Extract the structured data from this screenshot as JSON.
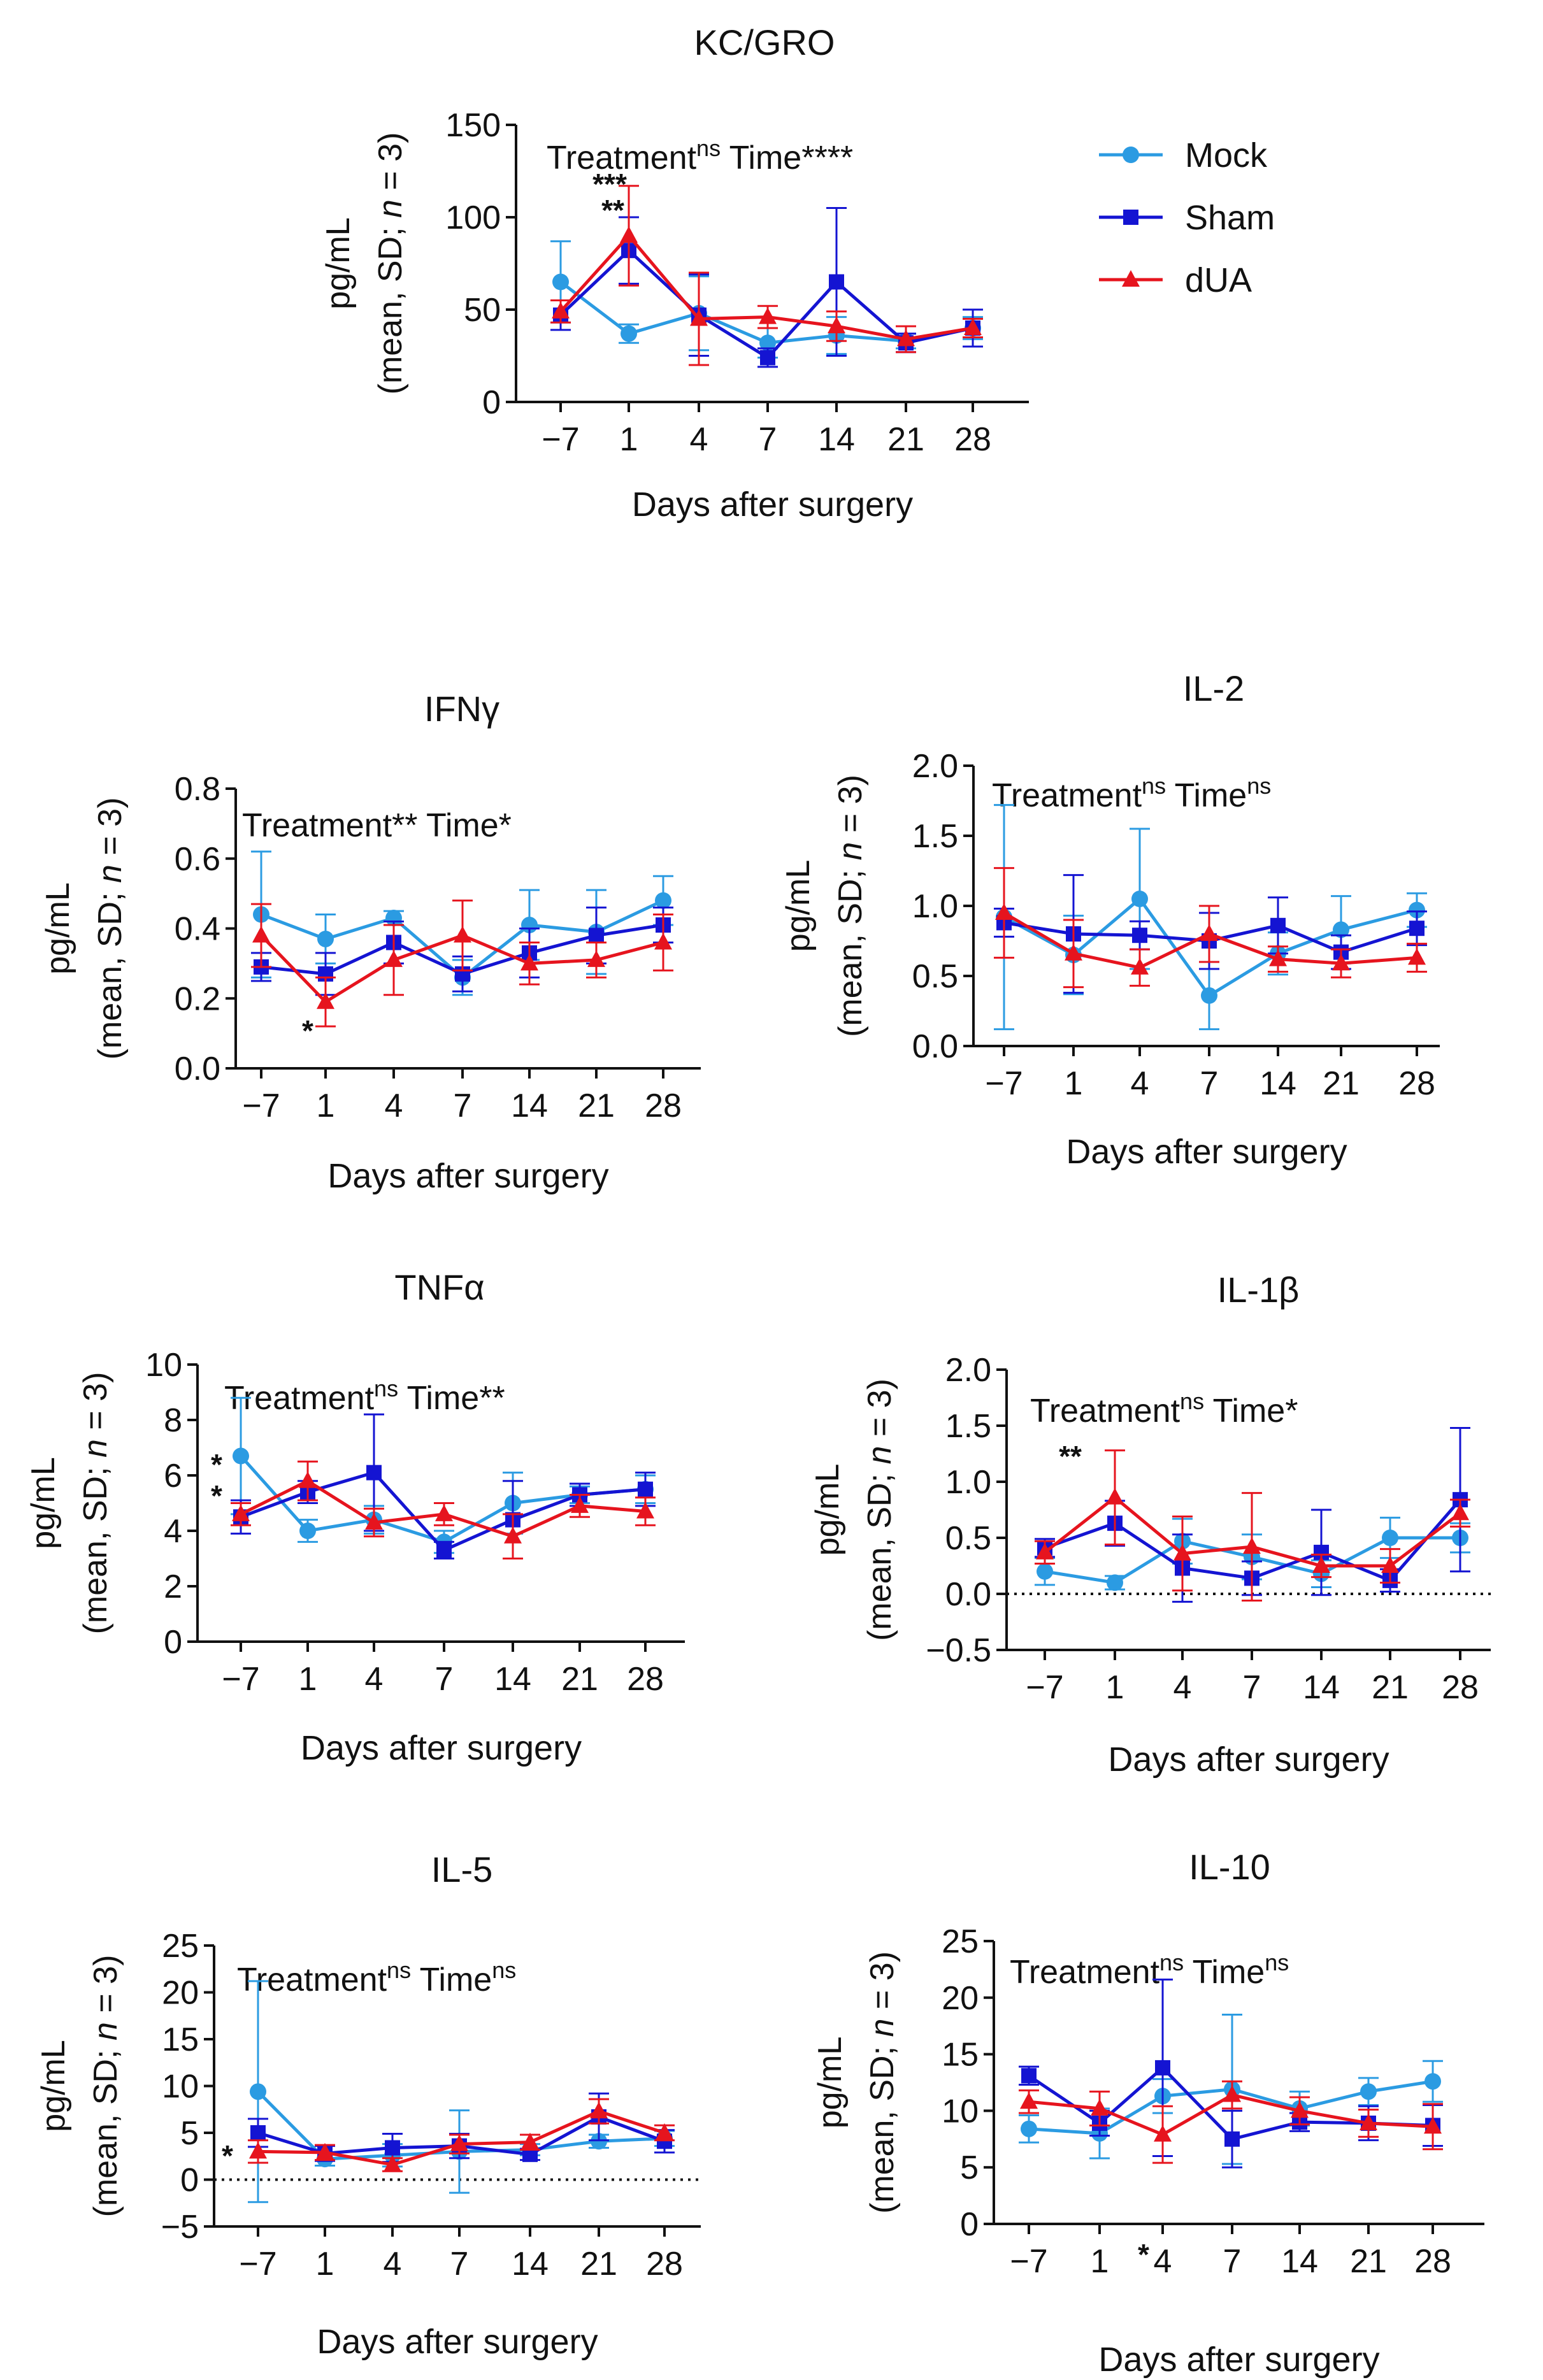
{
  "legend": {
    "items": [
      {
        "label": "Mock",
        "color": "#2b9be2",
        "marker": "circle"
      },
      {
        "label": "Sham",
        "color": "#1414d2",
        "marker": "square"
      },
      {
        "label": "dUA",
        "color": "#e6141e",
        "marker": "triangle"
      }
    ]
  },
  "chart_data": [
    {
      "type": "line",
      "title": "KC/GRO",
      "xlabel": "Days after surgery",
      "ylabel_line1": "pg/mL",
      "ylabel_pre": "(mean, SD; ",
      "ylabel_italic": "n",
      "ylabel_post": " = 3)",
      "categories": [
        "−7",
        "1",
        "4",
        "7",
        "14",
        "21",
        "28"
      ],
      "ylim": [
        0,
        150
      ],
      "yticks": [
        "0",
        "50",
        "100",
        "150"
      ],
      "dotted_zero": false,
      "stats": {
        "treatment": "Treatment",
        "treatment_sup": "ns",
        "time": "Time****",
        "time_sup": ""
      },
      "series": [
        {
          "name": "Mock",
          "values": [
            65,
            37,
            48,
            32,
            36,
            33,
            40
          ],
          "sd": [
            22,
            5,
            20,
            8,
            10,
            4,
            6
          ]
        },
        {
          "name": "Sham",
          "values": [
            47,
            82,
            47,
            24,
            65,
            32,
            40
          ],
          "sd": [
            8,
            18,
            22,
            5,
            40,
            5,
            10
          ]
        },
        {
          "name": "dUA",
          "values": [
            49,
            90,
            45,
            46,
            41,
            34,
            40
          ],
          "sd": [
            6,
            27,
            25,
            6,
            8,
            7,
            5
          ]
        }
      ],
      "annotations": [
        {
          "text": "***",
          "x_index": 1
        },
        {
          "text": "**",
          "x_index": 1
        }
      ]
    },
    {
      "type": "line",
      "title": "IFNγ",
      "xlabel": "Days after surgery",
      "ylabel_line1": "pg/mL",
      "ylabel_pre": "(mean, SD; ",
      "ylabel_italic": "n",
      "ylabel_post": " = 3)",
      "categories": [
        "−7",
        "1",
        "4",
        "7",
        "14",
        "21",
        "28"
      ],
      "ylim": [
        0,
        0.8
      ],
      "yticks": [
        "0.0",
        "0.2",
        "0.4",
        "0.6",
        "0.8"
      ],
      "dotted_zero": false,
      "stats": {
        "treatment": "Treatment** ",
        "treatment_sup": "",
        "time": "Time*",
        "time_sup": ""
      },
      "series": [
        {
          "name": "Mock",
          "values": [
            0.44,
            0.37,
            0.43,
            0.26,
            0.41,
            0.39,
            0.48
          ],
          "sd": [
            0.18,
            0.07,
            0.02,
            0.05,
            0.1,
            0.12,
            0.07
          ]
        },
        {
          "name": "Sham",
          "values": [
            0.29,
            0.27,
            0.36,
            0.27,
            0.33,
            0.38,
            0.41
          ],
          "sd": [
            0.04,
            0.06,
            0.06,
            0.05,
            0.07,
            0.08,
            0.05
          ]
        },
        {
          "name": "dUA",
          "values": [
            0.38,
            0.19,
            0.31,
            0.38,
            0.3,
            0.31,
            0.36
          ],
          "sd": [
            0.09,
            0.07,
            0.1,
            0.1,
            0.06,
            0.05,
            0.08
          ]
        }
      ],
      "annotations": [
        {
          "text": "*",
          "x_index": 1
        }
      ]
    },
    {
      "type": "line",
      "title": "IL-2",
      "xlabel": "Days after surgery",
      "ylabel_line1": "pg/mL",
      "ylabel_pre": "(mean, SD; ",
      "ylabel_italic": "n",
      "ylabel_post": " = 3)",
      "categories": [
        "−7",
        "1",
        "4",
        "7",
        "14",
        "21",
        "28"
      ],
      "ylim": [
        0,
        2.0
      ],
      "yticks": [
        "0.0",
        "0.5",
        "1.0",
        "1.5",
        "2.0"
      ],
      "dotted_zero": false,
      "stats": {
        "treatment": "Treatment",
        "treatment_sup": "ns",
        "time": "Time",
        "time_sup": "ns"
      },
      "series": [
        {
          "name": "Mock",
          "values": [
            0.92,
            0.65,
            1.05,
            0.36,
            0.66,
            0.83,
            0.97
          ],
          "sd": [
            0.8,
            0.28,
            0.5,
            0.24,
            0.15,
            0.24,
            0.12
          ]
        },
        {
          "name": "Sham",
          "values": [
            0.88,
            0.8,
            0.79,
            0.75,
            0.86,
            0.67,
            0.84
          ],
          "sd": [
            0.1,
            0.42,
            0.1,
            0.2,
            0.2,
            0.12,
            0.12
          ]
        },
        {
          "name": "dUA",
          "values": [
            0.95,
            0.66,
            0.56,
            0.8,
            0.62,
            0.59,
            0.63
          ],
          "sd": [
            0.32,
            0.24,
            0.13,
            0.2,
            0.09,
            0.1,
            0.1
          ]
        }
      ],
      "annotations": []
    },
    {
      "type": "line",
      "title": "TNFα",
      "xlabel": "Days after surgery",
      "ylabel_line1": "pg/mL",
      "ylabel_pre": "(mean, SD; ",
      "ylabel_italic": "n",
      "ylabel_post": " = 3)",
      "categories": [
        "−7",
        "1",
        "4",
        "7",
        "14",
        "21",
        "28"
      ],
      "ylim": [
        0,
        10
      ],
      "yticks": [
        "0",
        "2",
        "4",
        "6",
        "8",
        "10"
      ],
      "dotted_zero": false,
      "stats": {
        "treatment": "Treatment",
        "treatment_sup": "ns",
        "time": "Time**",
        "time_sup": ""
      },
      "series": [
        {
          "name": "Mock",
          "values": [
            6.7,
            4.0,
            4.4,
            3.6,
            5.0,
            5.3,
            5.5
          ],
          "sd": [
            2.1,
            0.4,
            0.5,
            0.4,
            1.1,
            0.3,
            0.5
          ]
        },
        {
          "name": "Sham",
          "values": [
            4.5,
            5.4,
            6.1,
            3.3,
            4.4,
            5.3,
            5.5
          ],
          "sd": [
            0.6,
            0.4,
            2.1,
            0.3,
            1.4,
            0.4,
            0.6
          ]
        },
        {
          "name": "dUA",
          "values": [
            4.6,
            5.8,
            4.3,
            4.6,
            3.8,
            4.9,
            4.7
          ],
          "sd": [
            0.4,
            0.7,
            0.5,
            0.4,
            0.8,
            0.4,
            0.5
          ]
        }
      ],
      "annotations": [
        {
          "text": "*",
          "x_index": 0
        },
        {
          "text": "*",
          "x_index": 0
        }
      ]
    },
    {
      "type": "line",
      "title": "IL-1β",
      "xlabel": "Days after surgery",
      "ylabel_line1": "pg/mL",
      "ylabel_pre": "(mean, SD; ",
      "ylabel_italic": "n",
      "ylabel_post": " = 3)",
      "categories": [
        "−7",
        "1",
        "4",
        "7",
        "14",
        "21",
        "28"
      ],
      "ylim": [
        -0.5,
        2.0
      ],
      "yticks": [
        "-0.5",
        "0.0",
        "0.5",
        "1.0",
        "1.5",
        "2.0"
      ],
      "dotted_zero": true,
      "stats": {
        "treatment": "Treatment",
        "treatment_sup": "ns",
        "time": "Time*",
        "time_sup": ""
      },
      "series": [
        {
          "name": "Mock",
          "values": [
            0.2,
            0.1,
            0.47,
            0.33,
            0.18,
            0.5,
            0.5
          ],
          "sd": [
            0.12,
            0.06,
            0.2,
            0.2,
            0.12,
            0.18,
            0.13
          ]
        },
        {
          "name": "Sham",
          "values": [
            0.41,
            0.63,
            0.23,
            0.14,
            0.37,
            0.12,
            0.84
          ],
          "sd": [
            0.08,
            0.2,
            0.3,
            0.15,
            0.38,
            0.1,
            0.64
          ]
        },
        {
          "name": "dUA",
          "values": [
            0.37,
            0.86,
            0.36,
            0.42,
            0.25,
            0.25,
            0.72
          ],
          "sd": [
            0.1,
            0.42,
            0.33,
            0.48,
            0.1,
            0.15,
            0.12
          ]
        }
      ],
      "annotations": [
        {
          "text": "**",
          "x_index": 1
        }
      ]
    },
    {
      "type": "line",
      "title": "IL-5",
      "xlabel": "Days after surgery",
      "ylabel_line1": "pg/mL",
      "ylabel_pre": "(mean, SD; ",
      "ylabel_italic": "n",
      "ylabel_post": " = 3)",
      "categories": [
        "−7",
        "1",
        "4",
        "7",
        "14",
        "21",
        "28"
      ],
      "ylim": [
        -5,
        25
      ],
      "yticks": [
        "-5",
        "0",
        "5",
        "10",
        "15",
        "20",
        "25"
      ],
      "dotted_zero": true,
      "stats": {
        "treatment": "Treatment",
        "treatment_sup": "ns",
        "time": "Time",
        "time_sup": "ns"
      },
      "series": [
        {
          "name": "Mock",
          "values": [
            9.4,
            2.2,
            2.6,
            3.0,
            3.2,
            4.1,
            4.4
          ],
          "sd": [
            11.8,
            0.7,
            1.2,
            4.4,
            0.6,
            0.7,
            0.8
          ]
        },
        {
          "name": "Sham",
          "values": [
            5.0,
            2.8,
            3.4,
            3.6,
            2.7,
            6.7,
            4.1
          ],
          "sd": [
            1.5,
            0.8,
            1.5,
            1.3,
            0.6,
            2.5,
            1.2
          ]
        },
        {
          "name": "dUA",
          "values": [
            3.0,
            2.9,
            1.6,
            3.8,
            4.0,
            7.3,
            5.0
          ],
          "sd": [
            1.2,
            0.8,
            0.7,
            1.0,
            0.8,
            1.3,
            0.8
          ]
        }
      ],
      "annotations": [
        {
          "text": "*",
          "x_index": 0
        }
      ]
    },
    {
      "type": "line",
      "title": "IL-10",
      "xlabel": "Days after surgery",
      "ylabel_line1": "pg/mL",
      "ylabel_pre": "(mean, SD; ",
      "ylabel_italic": "n",
      "ylabel_post": " = 3)",
      "categories": [
        "−7",
        "1",
        "4",
        "7",
        "14",
        "21",
        "28"
      ],
      "ylim": [
        0,
        25
      ],
      "yticks": [
        "0",
        "5",
        "10",
        "15",
        "20",
        "25"
      ],
      "dotted_zero": false,
      "stats": {
        "treatment": "Treatment",
        "treatment_sup": "ns",
        "time": "Time",
        "time_sup": "ns"
      },
      "series": [
        {
          "name": "Mock",
          "values": [
            8.4,
            8.0,
            11.3,
            11.9,
            10.2,
            11.7,
            12.6
          ],
          "sd": [
            1.2,
            2.2,
            1.5,
            6.6,
            1.5,
            1.2,
            1.8
          ]
        },
        {
          "name": "Sham",
          "values": [
            13.1,
            8.9,
            13.8,
            7.5,
            9.0,
            8.9,
            8.7
          ],
          "sd": [
            0.8,
            1.1,
            7.8,
            2.5,
            0.8,
            1.5,
            1.8
          ]
        },
        {
          "name": "dUA",
          "values": [
            10.8,
            10.2,
            7.9,
            11.4,
            10.0,
            8.9,
            8.6
          ],
          "sd": [
            1.0,
            1.5,
            2.5,
            1.2,
            1.2,
            1.2,
            2.0
          ]
        }
      ],
      "annotations": [
        {
          "text": "*",
          "x_index": 2
        }
      ]
    }
  ]
}
